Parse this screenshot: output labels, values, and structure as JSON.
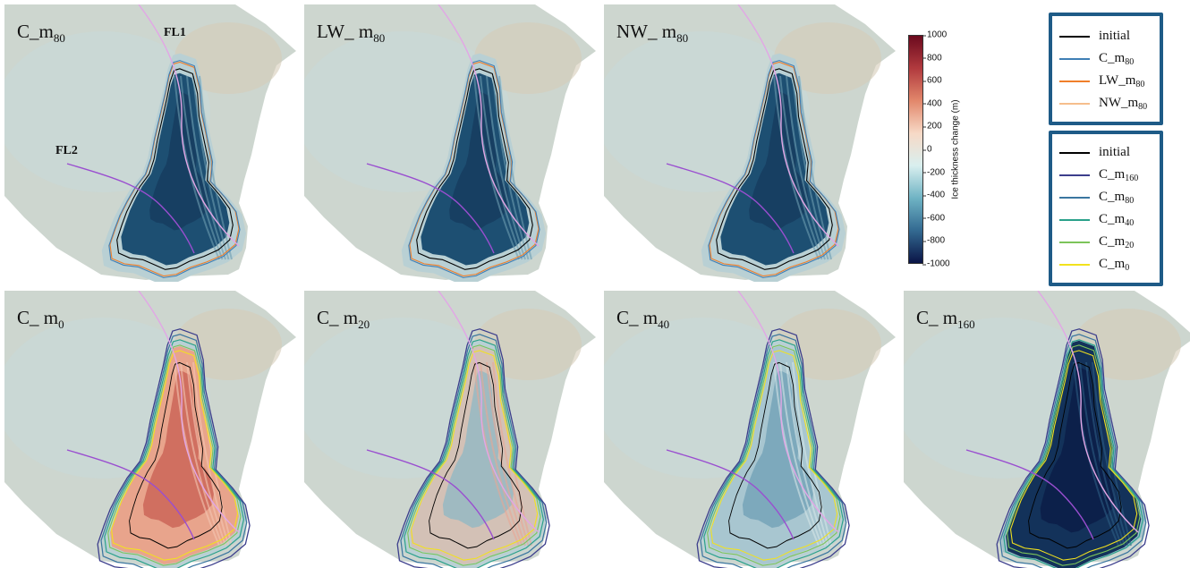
{
  "panels": [
    {
      "id": "C_m80",
      "prefix": "C_m",
      "sub": "80",
      "style": "thin"
    },
    {
      "id": "LW_m80",
      "prefix": "LW_ m",
      "sub": "80",
      "style": "thin"
    },
    {
      "id": "NW_m80",
      "prefix": "NW_ m",
      "sub": "80",
      "style": "thin"
    },
    {
      "id": "C_m0",
      "prefix": "C_ m",
      "sub": "0",
      "style": "red"
    },
    {
      "id": "C_m20",
      "prefix": "C_ m",
      "sub": "20",
      "style": "mix"
    },
    {
      "id": "C_m40",
      "prefix": "C_ m",
      "sub": "40",
      "style": "mid"
    },
    {
      "id": "C_m160",
      "prefix": "C_ m",
      "sub": "160",
      "style": "deep"
    }
  ],
  "flowlines": {
    "fl1": "FL1",
    "fl2": "FL2"
  },
  "colorbar": {
    "label": "Ice thickness change (m)",
    "min": -1000,
    "max": 1000,
    "ticks": [
      "1000",
      "800",
      "600",
      "400",
      "200",
      "0",
      "-200",
      "-400",
      "-600",
      "-800",
      "-1000"
    ],
    "tick_values": [
      1000,
      800,
      600,
      400,
      200,
      0,
      -200,
      -400,
      -600,
      -800,
      -1000
    ],
    "colors": [
      "#6b0a1e",
      "#b13a3e",
      "#e2876b",
      "#f7d9c6",
      "#d9efef",
      "#6fb3c4",
      "#336a91",
      "#0a1446"
    ]
  },
  "legend_top": [
    {
      "prefix": "initial",
      "sub": "",
      "color": "#000000"
    },
    {
      "prefix": "C_m",
      "sub": "80",
      "color": "#3f7fb5"
    },
    {
      "prefix": "LW_m",
      "sub": "80",
      "color": "#f07f2a"
    },
    {
      "prefix": "NW_m",
      "sub": "80",
      "color": "#f6be8c"
    }
  ],
  "legend_bottom": [
    {
      "prefix": "initial",
      "sub": "",
      "color": "#000000"
    },
    {
      "prefix": "C_m",
      "sub": "160",
      "color": "#3c3e8c"
    },
    {
      "prefix": "C_m",
      "sub": "80",
      "color": "#3a76a0"
    },
    {
      "prefix": "C_m",
      "sub": "40",
      "color": "#2aa18a"
    },
    {
      "prefix": "C_m",
      "sub": "20",
      "color": "#7cc45a"
    },
    {
      "prefix": "C_m",
      "sub": "0",
      "color": "#f2e21d"
    }
  ],
  "colors": {
    "land": "#cfc7b5",
    "ocean": "#cdd8d6",
    "fl1": "#e2a6e6",
    "fl2": "#9a4ed0",
    "legend_border": "#1e5b87"
  }
}
